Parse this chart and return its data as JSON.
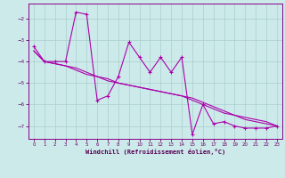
{
  "xlabel": "Windchill (Refroidissement éolien,°C)",
  "xlim": [
    -0.5,
    23.5
  ],
  "ylim": [
    -7.6,
    -1.3
  ],
  "background_color": "#cdeaea",
  "grid_color": "#aacece",
  "line_color": "#aa00aa",
  "x_values": [
    0,
    1,
    2,
    3,
    4,
    5,
    6,
    7,
    8,
    9,
    10,
    11,
    12,
    13,
    14,
    15,
    16,
    17,
    18,
    19,
    20,
    21,
    22,
    23
  ],
  "line1_y": [
    -3.3,
    -4.0,
    -4.0,
    -4.0,
    -1.7,
    -1.8,
    -5.8,
    -5.6,
    -4.7,
    -3.1,
    -3.8,
    -4.5,
    -3.8,
    -4.5,
    -3.8,
    -7.4,
    -6.0,
    -6.9,
    -6.8,
    -7.0,
    -7.1,
    -7.1,
    -7.1,
    -7.0
  ],
  "line2_y": [
    -3.5,
    -4.0,
    -4.1,
    -4.2,
    -4.3,
    -4.5,
    -4.7,
    -4.8,
    -5.0,
    -5.1,
    -5.2,
    -5.3,
    -5.4,
    -5.5,
    -5.6,
    -5.8,
    -6.0,
    -6.2,
    -6.4,
    -6.5,
    -6.6,
    -6.7,
    -6.8,
    -7.0
  ],
  "line3_y": [
    -3.5,
    -4.0,
    -4.1,
    -4.2,
    -4.4,
    -4.6,
    -4.7,
    -4.9,
    -5.0,
    -5.1,
    -5.2,
    -5.3,
    -5.4,
    -5.5,
    -5.6,
    -5.7,
    -5.9,
    -6.1,
    -6.3,
    -6.5,
    -6.7,
    -6.8,
    -6.9,
    -7.0
  ],
  "yticks": [
    -7,
    -6,
    -5,
    -4,
    -3,
    -2
  ],
  "xticks": [
    0,
    1,
    2,
    3,
    4,
    5,
    6,
    7,
    8,
    9,
    10,
    11,
    12,
    13,
    14,
    15,
    16,
    17,
    18,
    19,
    20,
    21,
    22,
    23
  ]
}
